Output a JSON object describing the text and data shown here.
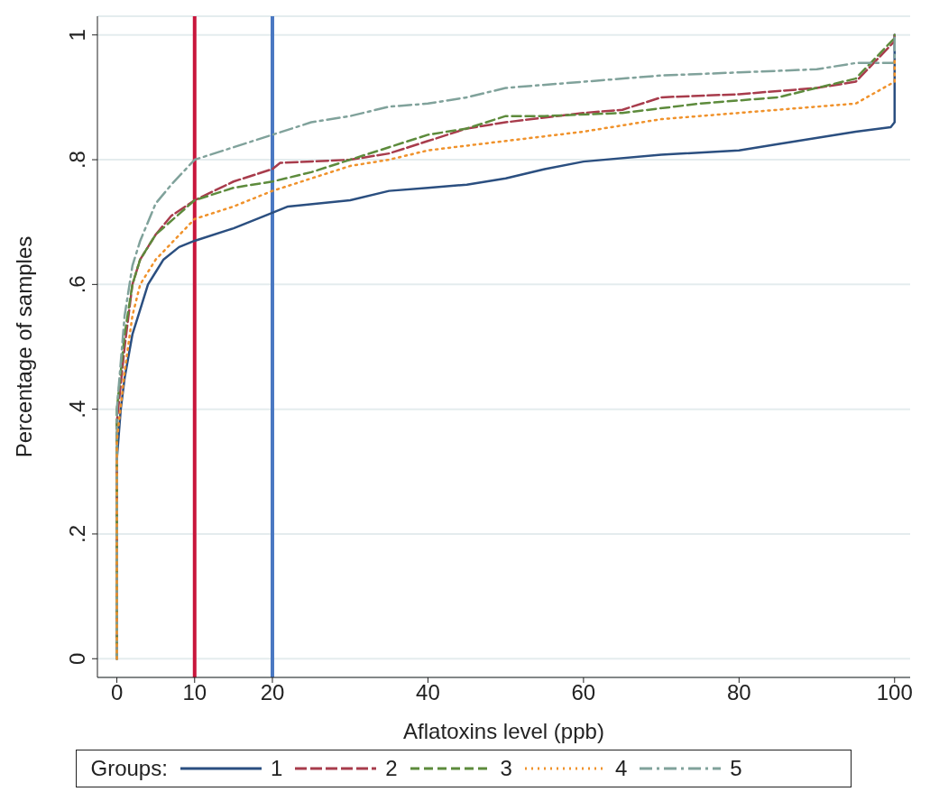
{
  "chart_data": {
    "type": "line",
    "xlabel": "Aflatoxins level (ppb)",
    "ylabel": "Percentage of samples",
    "legend_title": "Groups:",
    "legend": "bottom",
    "grid": "y",
    "marker": "none",
    "xlim": [
      -2.5,
      102
    ],
    "xticks": [
      0,
      10,
      20,
      40,
      60,
      80,
      100
    ],
    "ylim": [
      -0.03,
      1.03
    ],
    "yticks": [
      {
        "value": 0,
        "label": "0"
      },
      {
        "value": 0.2,
        "label": ".2"
      },
      {
        "value": 0.4,
        "label": ".4"
      },
      {
        "value": 0.6,
        "label": ".6"
      },
      {
        "value": 0.8,
        "label": ".8"
      },
      {
        "value": 1,
        "label": "1"
      }
    ],
    "ref_lines": [
      {
        "axis": "x",
        "value": 10,
        "label": null,
        "color": "#c8163c"
      },
      {
        "axis": "x",
        "value": 20,
        "label": null,
        "color": "#4a78c2"
      }
    ],
    "series": [
      {
        "name": "1",
        "color": "#2b4f80",
        "line_style": "solid",
        "x": [
          0,
          0,
          0.5,
          1,
          2,
          3,
          4,
          5,
          6,
          8,
          10,
          15,
          20,
          22,
          30,
          35,
          40,
          45,
          50,
          55,
          60,
          70,
          80,
          85,
          95,
          99.5,
          100,
          100
        ],
        "values": [
          0,
          0.32,
          0.4,
          0.45,
          0.52,
          0.56,
          0.6,
          0.62,
          0.64,
          0.66,
          0.67,
          0.69,
          0.715,
          0.725,
          0.735,
          0.75,
          0.755,
          0.76,
          0.77,
          0.785,
          0.797,
          0.808,
          0.815,
          0.825,
          0.845,
          0.852,
          0.86,
          1
        ]
      },
      {
        "name": "2",
        "color": "#a83c4c",
        "line_style": "dashed",
        "x": [
          0,
          0,
          1,
          2,
          3,
          5,
          7,
          10,
          15,
          20,
          21,
          30,
          35,
          40,
          45,
          50,
          60,
          65,
          70,
          80,
          90,
          95,
          100,
          100
        ],
        "values": [
          0,
          0.38,
          0.5,
          0.6,
          0.64,
          0.68,
          0.71,
          0.735,
          0.765,
          0.785,
          0.795,
          0.8,
          0.81,
          0.83,
          0.85,
          0.86,
          0.875,
          0.88,
          0.9,
          0.905,
          0.915,
          0.925,
          0.99,
          1
        ]
      },
      {
        "name": "3",
        "color": "#5d8b3c",
        "line_style": "dashed",
        "x": [
          0,
          0,
          1,
          2,
          3,
          5,
          10,
          15,
          20,
          25,
          30,
          35,
          40,
          45,
          50,
          55,
          65,
          75,
          85,
          95,
          100,
          100
        ],
        "values": [
          0,
          0.4,
          0.52,
          0.6,
          0.64,
          0.68,
          0.735,
          0.755,
          0.765,
          0.78,
          0.8,
          0.82,
          0.84,
          0.85,
          0.87,
          0.87,
          0.875,
          0.89,
          0.9,
          0.93,
          0.995,
          1
        ]
      },
      {
        "name": "4",
        "color": "#f0922b",
        "line_style": "dotted",
        "x": [
          0,
          0,
          1,
          2,
          3,
          5,
          10,
          15,
          20,
          25,
          30,
          35,
          40,
          50,
          60,
          70,
          80,
          90,
          95,
          100,
          100
        ],
        "values": [
          0,
          0.35,
          0.46,
          0.55,
          0.6,
          0.64,
          0.705,
          0.725,
          0.75,
          0.77,
          0.79,
          0.8,
          0.815,
          0.83,
          0.845,
          0.865,
          0.875,
          0.885,
          0.89,
          0.925,
          0.96
        ]
      },
      {
        "name": "5",
        "color": "#80a29b",
        "line_style": "dashed",
        "x": [
          0,
          0,
          1,
          2,
          3,
          5,
          7,
          10,
          15,
          20,
          25,
          30,
          35,
          40,
          45,
          50,
          60,
          70,
          80,
          90,
          95,
          100,
          100
        ],
        "values": [
          0,
          0.4,
          0.55,
          0.63,
          0.67,
          0.73,
          0.76,
          0.8,
          0.82,
          0.84,
          0.86,
          0.87,
          0.885,
          0.89,
          0.9,
          0.915,
          0.925,
          0.935,
          0.94,
          0.945,
          0.955,
          0.955,
          1
        ]
      }
    ]
  }
}
